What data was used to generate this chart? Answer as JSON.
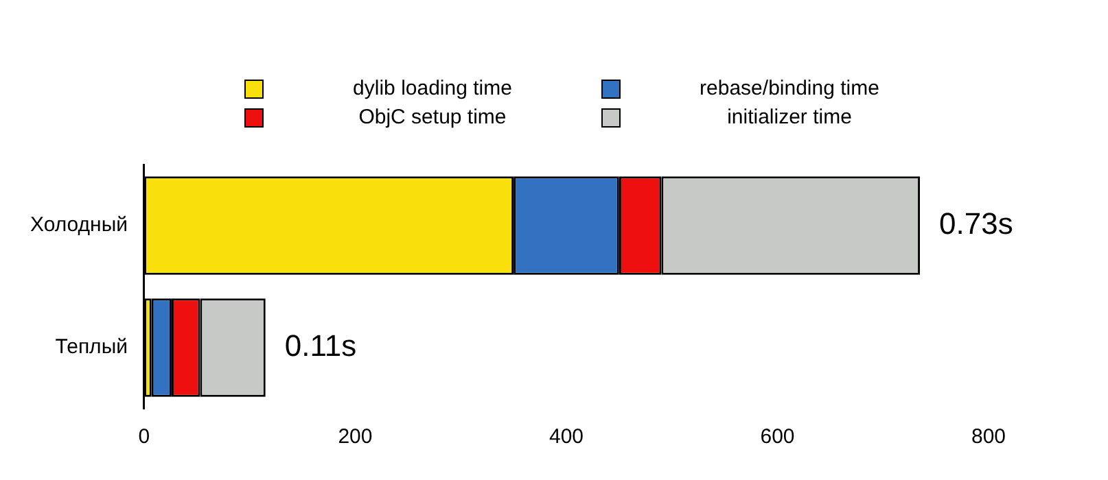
{
  "chart_data": {
    "type": "bar",
    "orientation": "horizontal",
    "stacked": true,
    "categories": [
      "Холодный",
      "Теплый"
    ],
    "series": [
      {
        "name": "dylib loading time",
        "color": "#f9e00c",
        "values": [
          350,
          7
        ]
      },
      {
        "name": "rebase/binding time",
        "color": "#3272c0",
        "values": [
          100,
          19
        ]
      },
      {
        "name": "ObjC setup time",
        "color": "#ee0f0f",
        "values": [
          40,
          27
        ]
      },
      {
        "name": "initializer time",
        "color": "#c7c9c7",
        "values": [
          245,
          62
        ]
      }
    ],
    "annotations": [
      {
        "text": "0.73s",
        "x": 735,
        "y": "Холодный"
      },
      {
        "text": "0.11s",
        "x": 115,
        "y": "Теплый"
      }
    ],
    "xlim": [
      0,
      800
    ],
    "xticks": [
      0,
      200,
      400,
      600,
      800
    ],
    "grid": false,
    "legend": "top"
  }
}
